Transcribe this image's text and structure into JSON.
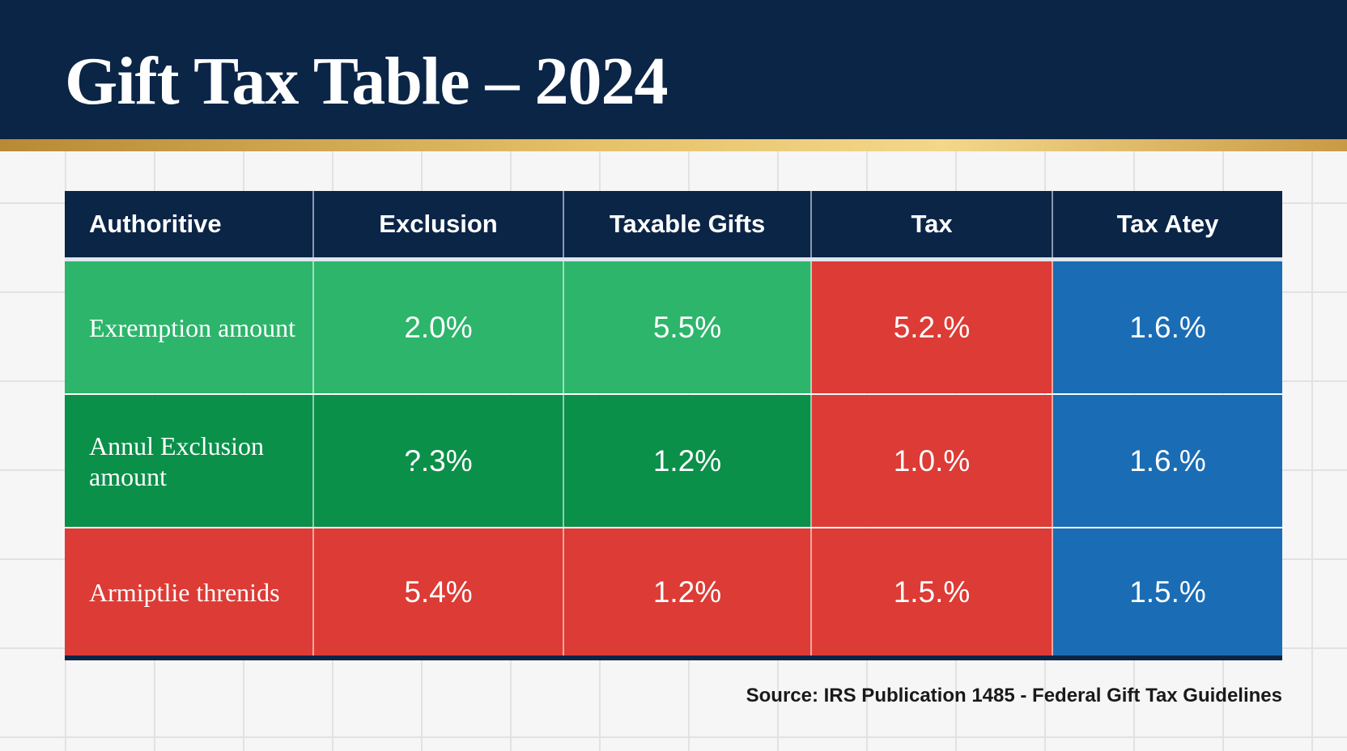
{
  "title": "Gift Tax Table – 2024",
  "colors": {
    "navy": "#0b2547",
    "green": "#2db56b",
    "dark_green": "#0b904a",
    "red": "#dd3b35",
    "blue": "#1a6db4",
    "gold": "#e6c26a"
  },
  "table": {
    "headers": [
      "Authoritive",
      "Exclusion",
      "Taxable Gifts",
      "Tax",
      "Tax Atey"
    ],
    "rows": [
      {
        "label": "Exremption amount",
        "values": [
          "2.0%",
          "5.5%",
          "5.2.%",
          "1.6.%"
        ],
        "colors": [
          "#2db56b",
          "#2db56b",
          "#2db56b",
          "#dd3b35",
          "#1a6db4"
        ]
      },
      {
        "label": "Annul Exclusion amount",
        "values": [
          "?.3%",
          "1.2%",
          "1.0.%",
          "1.6.%"
        ],
        "colors": [
          "#0b904a",
          "#0b904a",
          "#0b904a",
          "#dd3b35",
          "#1a6db4"
        ]
      },
      {
        "label": "Armiptlie threnids",
        "values": [
          "5.4%",
          "1.2%",
          "1.5.%",
          "1.5.%"
        ],
        "colors": [
          "#dd3b35",
          "#dd3b35",
          "#dd3b35",
          "#dd3b35",
          "#1a6db4"
        ]
      }
    ]
  },
  "source": "Source: IRS Publication 1485 - Federal Gift Tax Guidelines"
}
